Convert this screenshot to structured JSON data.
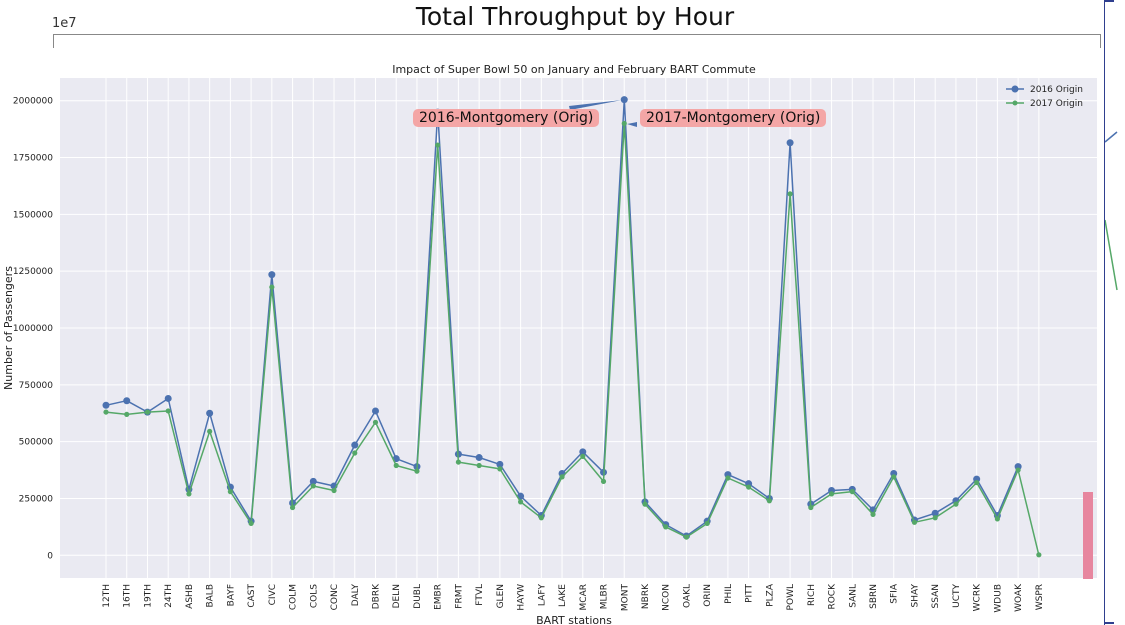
{
  "figure": {
    "main_title": "Total Throughput by Hour",
    "exponent_label": "1e7"
  },
  "annotations": {
    "a2016": "2016-Montgomery (Orig)",
    "a2017": "2017-Montgomery (Orig)"
  },
  "colors": {
    "plot_bg": "#eaeaf2",
    "grid": "#ffffff",
    "series_2016": "#4c72b0",
    "series_2017": "#55a868",
    "annotation_bg": "#f4a6a6",
    "pink_bar": "#e7869f"
  },
  "chart_data": {
    "type": "line",
    "title": "Impact of Super Bowl 50 on January and February BART Commute",
    "xlabel": "BART stations",
    "ylabel": "Number of Passengers",
    "ylim": [
      -100000,
      2100000
    ],
    "yticks": [
      0,
      250000,
      500000,
      750000,
      1000000,
      1250000,
      1500000,
      1750000,
      2000000
    ],
    "grid": true,
    "legend_position": "top-right",
    "categories": [
      "12TH",
      "16TH",
      "19TH",
      "24TH",
      "ASHB",
      "BALB",
      "BAYF",
      "CAST",
      "CIVC",
      "COLM",
      "COLS",
      "CONC",
      "DALY",
      "DBRK",
      "DELN",
      "DUBL",
      "EMBR",
      "FRMT",
      "FTVL",
      "GLEN",
      "HAYW",
      "LAFY",
      "LAKE",
      "MCAR",
      "MLBR",
      "MONT",
      "NBRK",
      "NCON",
      "OAKL",
      "ORIN",
      "PHIL",
      "PITT",
      "PLZA",
      "POWL",
      "RICH",
      "ROCK",
      "SANL",
      "SBRN",
      "SFIA",
      "SHAY",
      "SSAN",
      "UCTY",
      "WCRK",
      "WDUB",
      "WOAK",
      "WSPR"
    ],
    "series": [
      {
        "name": "2016 Origin",
        "values": [
          660000,
          680000,
          630000,
          690000,
          290000,
          625000,
          300000,
          150000,
          1235000,
          230000,
          325000,
          305000,
          485000,
          635000,
          425000,
          390000,
          1950000,
          445000,
          430000,
          400000,
          260000,
          175000,
          360000,
          455000,
          365000,
          2005000,
          235000,
          135000,
          85000,
          150000,
          355000,
          315000,
          250000,
          1815000,
          225000,
          285000,
          290000,
          200000,
          360000,
          155000,
          185000,
          240000,
          335000,
          175000,
          390000,
          null
        ]
      },
      {
        "name": "2017 Origin",
        "values": [
          630000,
          620000,
          630000,
          635000,
          270000,
          545000,
          280000,
          140000,
          1180000,
          210000,
          305000,
          285000,
          450000,
          585000,
          395000,
          370000,
          1805000,
          410000,
          395000,
          380000,
          235000,
          165000,
          345000,
          435000,
          325000,
          1900000,
          225000,
          125000,
          80000,
          140000,
          340000,
          300000,
          240000,
          1590000,
          210000,
          270000,
          280000,
          180000,
          345000,
          145000,
          165000,
          225000,
          320000,
          160000,
          375000,
          2000
        ]
      }
    ]
  }
}
